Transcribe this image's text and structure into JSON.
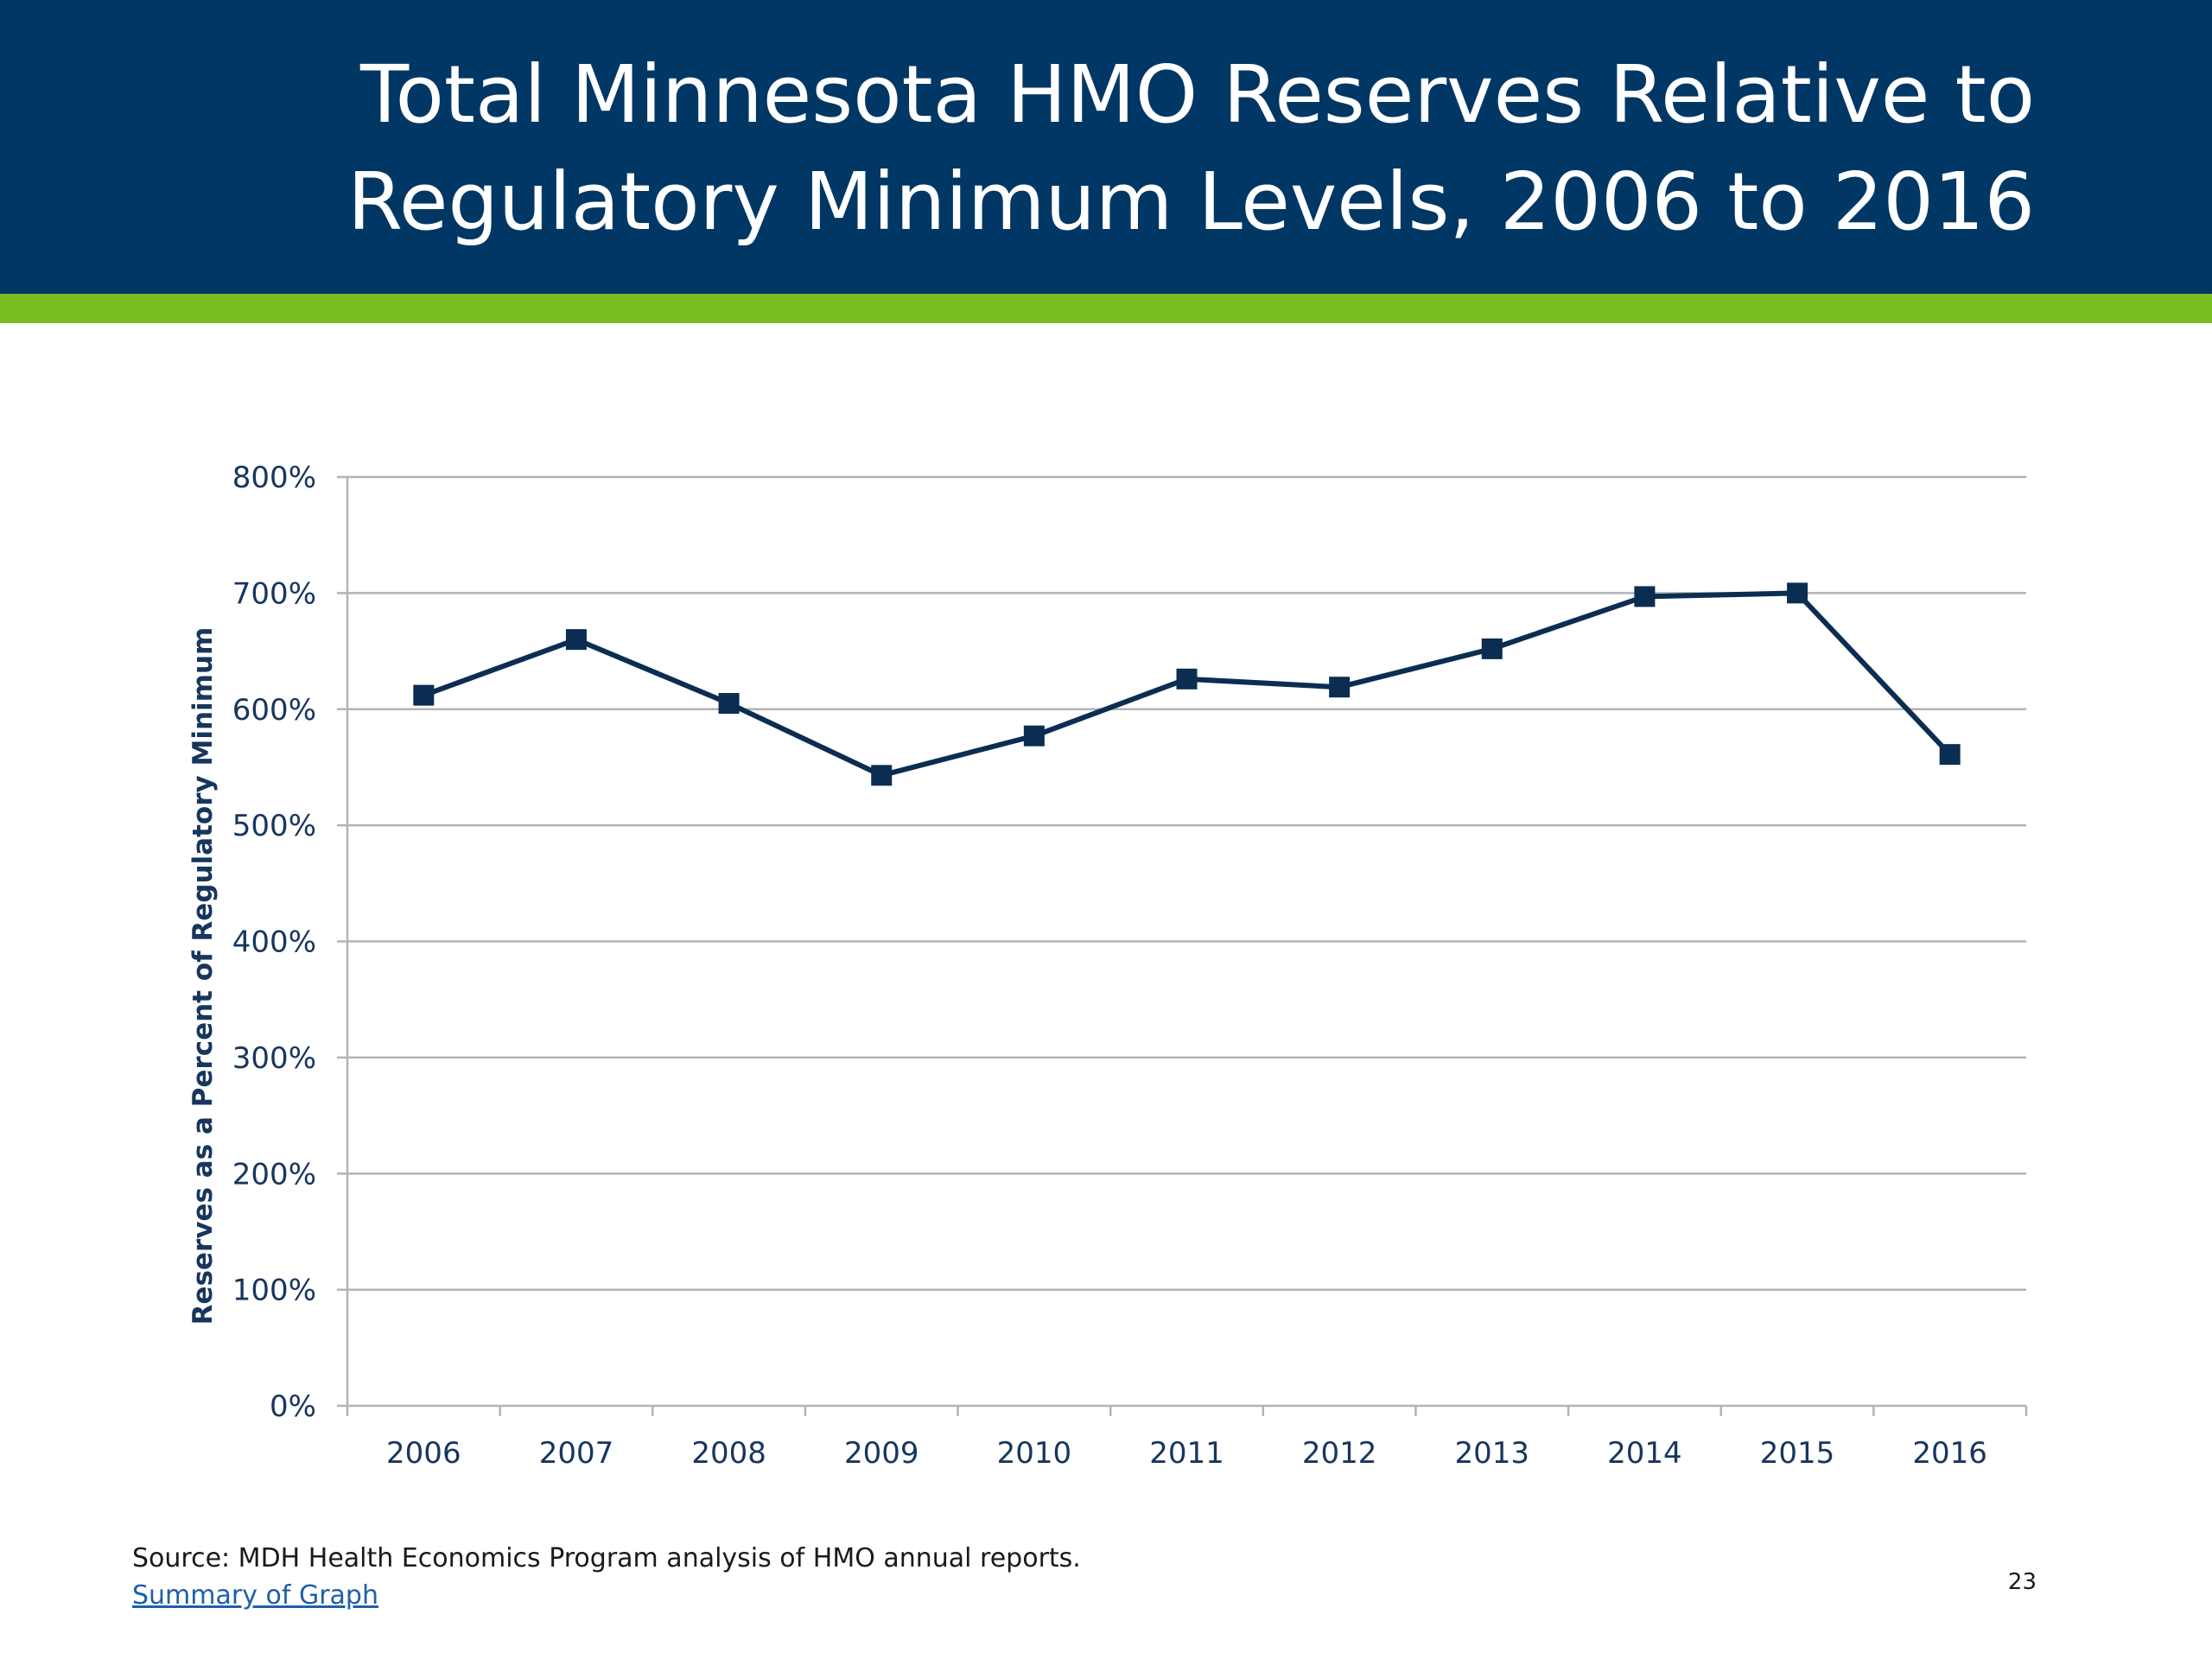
{
  "slide": {
    "title": "Total Minnesota HMO Reserves Relative to Regulatory Minimum Levels, 2006 to 2016",
    "source": "Source: MDH Health Economics Program analysis of HMO annual reports.",
    "summary_link": "Summary of Graph",
    "page_number": "23"
  },
  "colors": {
    "header": "#003764",
    "accent_bar": "#78be20",
    "series": "#0b2d52",
    "gridline": "#b3b3b3",
    "text": "#17365d"
  },
  "chart_data": {
    "type": "line",
    "title": "",
    "xlabel": "",
    "ylabel": "Reserves as a Percent of Regulatory Minimum",
    "categories": [
      "2006",
      "2007",
      "2008",
      "2009",
      "2010",
      "2011",
      "2012",
      "2013",
      "2014",
      "2015",
      "2016"
    ],
    "values": [
      612,
      660,
      605,
      543,
      577,
      626,
      619,
      652,
      697,
      700,
      561
    ],
    "ylim": [
      0,
      800
    ],
    "yticks": [
      0,
      100,
      200,
      300,
      400,
      500,
      600,
      700,
      800
    ],
    "ytick_labels": [
      "0%",
      "100%",
      "200%",
      "300%",
      "400%",
      "500%",
      "600%",
      "700%",
      "800%"
    ],
    "marker": "square",
    "grid": true,
    "legend": "none"
  }
}
